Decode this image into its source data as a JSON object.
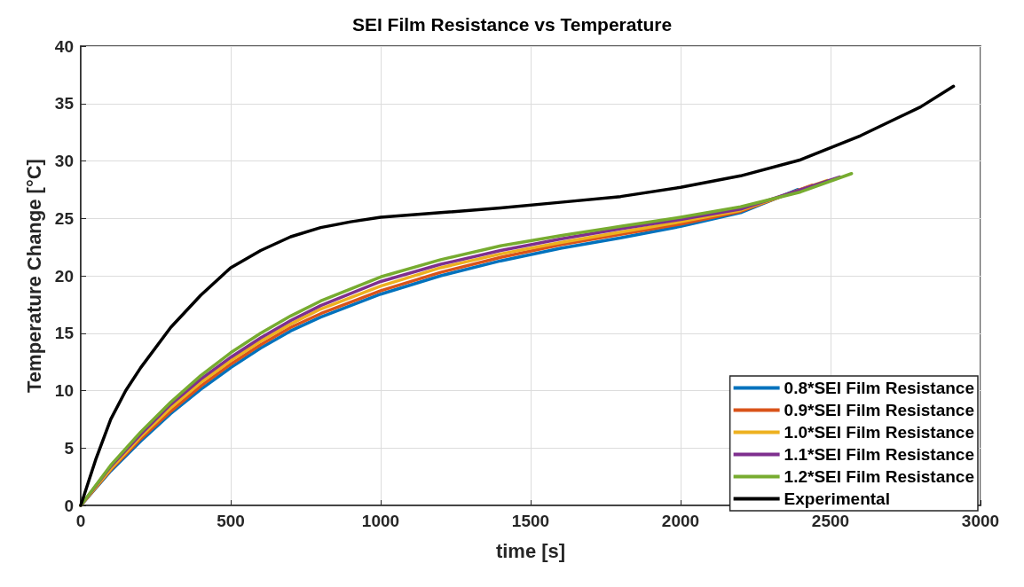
{
  "chart_data": {
    "type": "line",
    "title": "SEI Film Resistance vs Temperature",
    "xlabel": "time [s]",
    "ylabel": "Temperature Change [°C]",
    "xlim": [
      0,
      3000
    ],
    "xticks": [
      0,
      500,
      1000,
      1500,
      2000,
      2500,
      3000
    ],
    "ylim": [
      0,
      40
    ],
    "yticks": [
      0,
      5,
      10,
      15,
      20,
      25,
      30,
      35,
      40
    ],
    "grid": true,
    "legend": "bottom right",
    "marker": "none",
    "line_style": "solid",
    "series": [
      {
        "name": "0.8*SEI Film Resistance",
        "color": "#0072bd",
        "x": [
          0,
          100,
          200,
          300,
          400,
          500,
          600,
          700,
          800,
          1000,
          1200,
          1400,
          1600,
          1800,
          2000,
          2200,
          2390
        ],
        "values": [
          0,
          3,
          5.6,
          8,
          10.1,
          12,
          13.7,
          15.2,
          16.4,
          18.4,
          20,
          21.3,
          22.4,
          23.3,
          24.3,
          25.5,
          27.5
        ]
      },
      {
        "name": "0.9*SEI Film Resistance",
        "color": "#d95319",
        "x": [
          0,
          100,
          200,
          300,
          400,
          500,
          600,
          700,
          800,
          1000,
          1200,
          1400,
          1600,
          1800,
          2000,
          2200,
          2440
        ],
        "values": [
          0,
          3.1,
          5.8,
          8.2,
          10.4,
          12.3,
          14,
          15.5,
          16.7,
          18.7,
          20.3,
          21.6,
          22.7,
          23.6,
          24.5,
          25.6,
          27.9
        ]
      },
      {
        "name": "1.0*SEI Film Resistance",
        "color": "#edb120",
        "x": [
          0,
          100,
          200,
          300,
          400,
          500,
          600,
          700,
          800,
          1000,
          1200,
          1400,
          1600,
          1800,
          2000,
          2200,
          2490
        ],
        "values": [
          0,
          3.2,
          6,
          8.5,
          10.7,
          12.6,
          14.3,
          15.8,
          17.1,
          19.1,
          20.7,
          21.9,
          22.9,
          23.8,
          24.7,
          25.7,
          28.3
        ]
      },
      {
        "name": "1.1*SEI Film Resistance",
        "color": "#7e2f8e",
        "x": [
          0,
          100,
          200,
          300,
          400,
          500,
          600,
          700,
          800,
          1000,
          1200,
          1400,
          1600,
          1800,
          2000,
          2200,
          2530
        ],
        "values": [
          0,
          3.4,
          6.2,
          8.8,
          11,
          12.9,
          14.6,
          16.1,
          17.4,
          19.5,
          21,
          22.2,
          23.2,
          24.1,
          24.9,
          25.8,
          28.6
        ]
      },
      {
        "name": "1.2*SEI Film Resistance",
        "color": "#77ac30",
        "x": [
          0,
          100,
          200,
          300,
          400,
          500,
          600,
          700,
          800,
          1000,
          1200,
          1400,
          1600,
          1800,
          2000,
          2200,
          2400,
          2570
        ],
        "values": [
          0,
          3.5,
          6.4,
          9,
          11.3,
          13.3,
          15,
          16.5,
          17.8,
          19.9,
          21.4,
          22.6,
          23.5,
          24.3,
          25.1,
          26,
          27.3,
          28.9
        ]
      },
      {
        "name": "Experimental",
        "color": "#000000",
        "x": [
          0,
          50,
          100,
          150,
          200,
          300,
          400,
          500,
          600,
          700,
          800,
          900,
          1000,
          1200,
          1400,
          1600,
          1800,
          2000,
          2200,
          2400,
          2600,
          2800,
          2910
        ],
        "values": [
          0,
          4,
          7.5,
          10,
          12,
          15.5,
          18.3,
          20.7,
          22.2,
          23.4,
          24.2,
          24.7,
          25.1,
          25.5,
          25.9,
          26.4,
          26.9,
          27.7,
          28.7,
          30.1,
          32.2,
          34.7,
          36.5
        ]
      }
    ]
  }
}
